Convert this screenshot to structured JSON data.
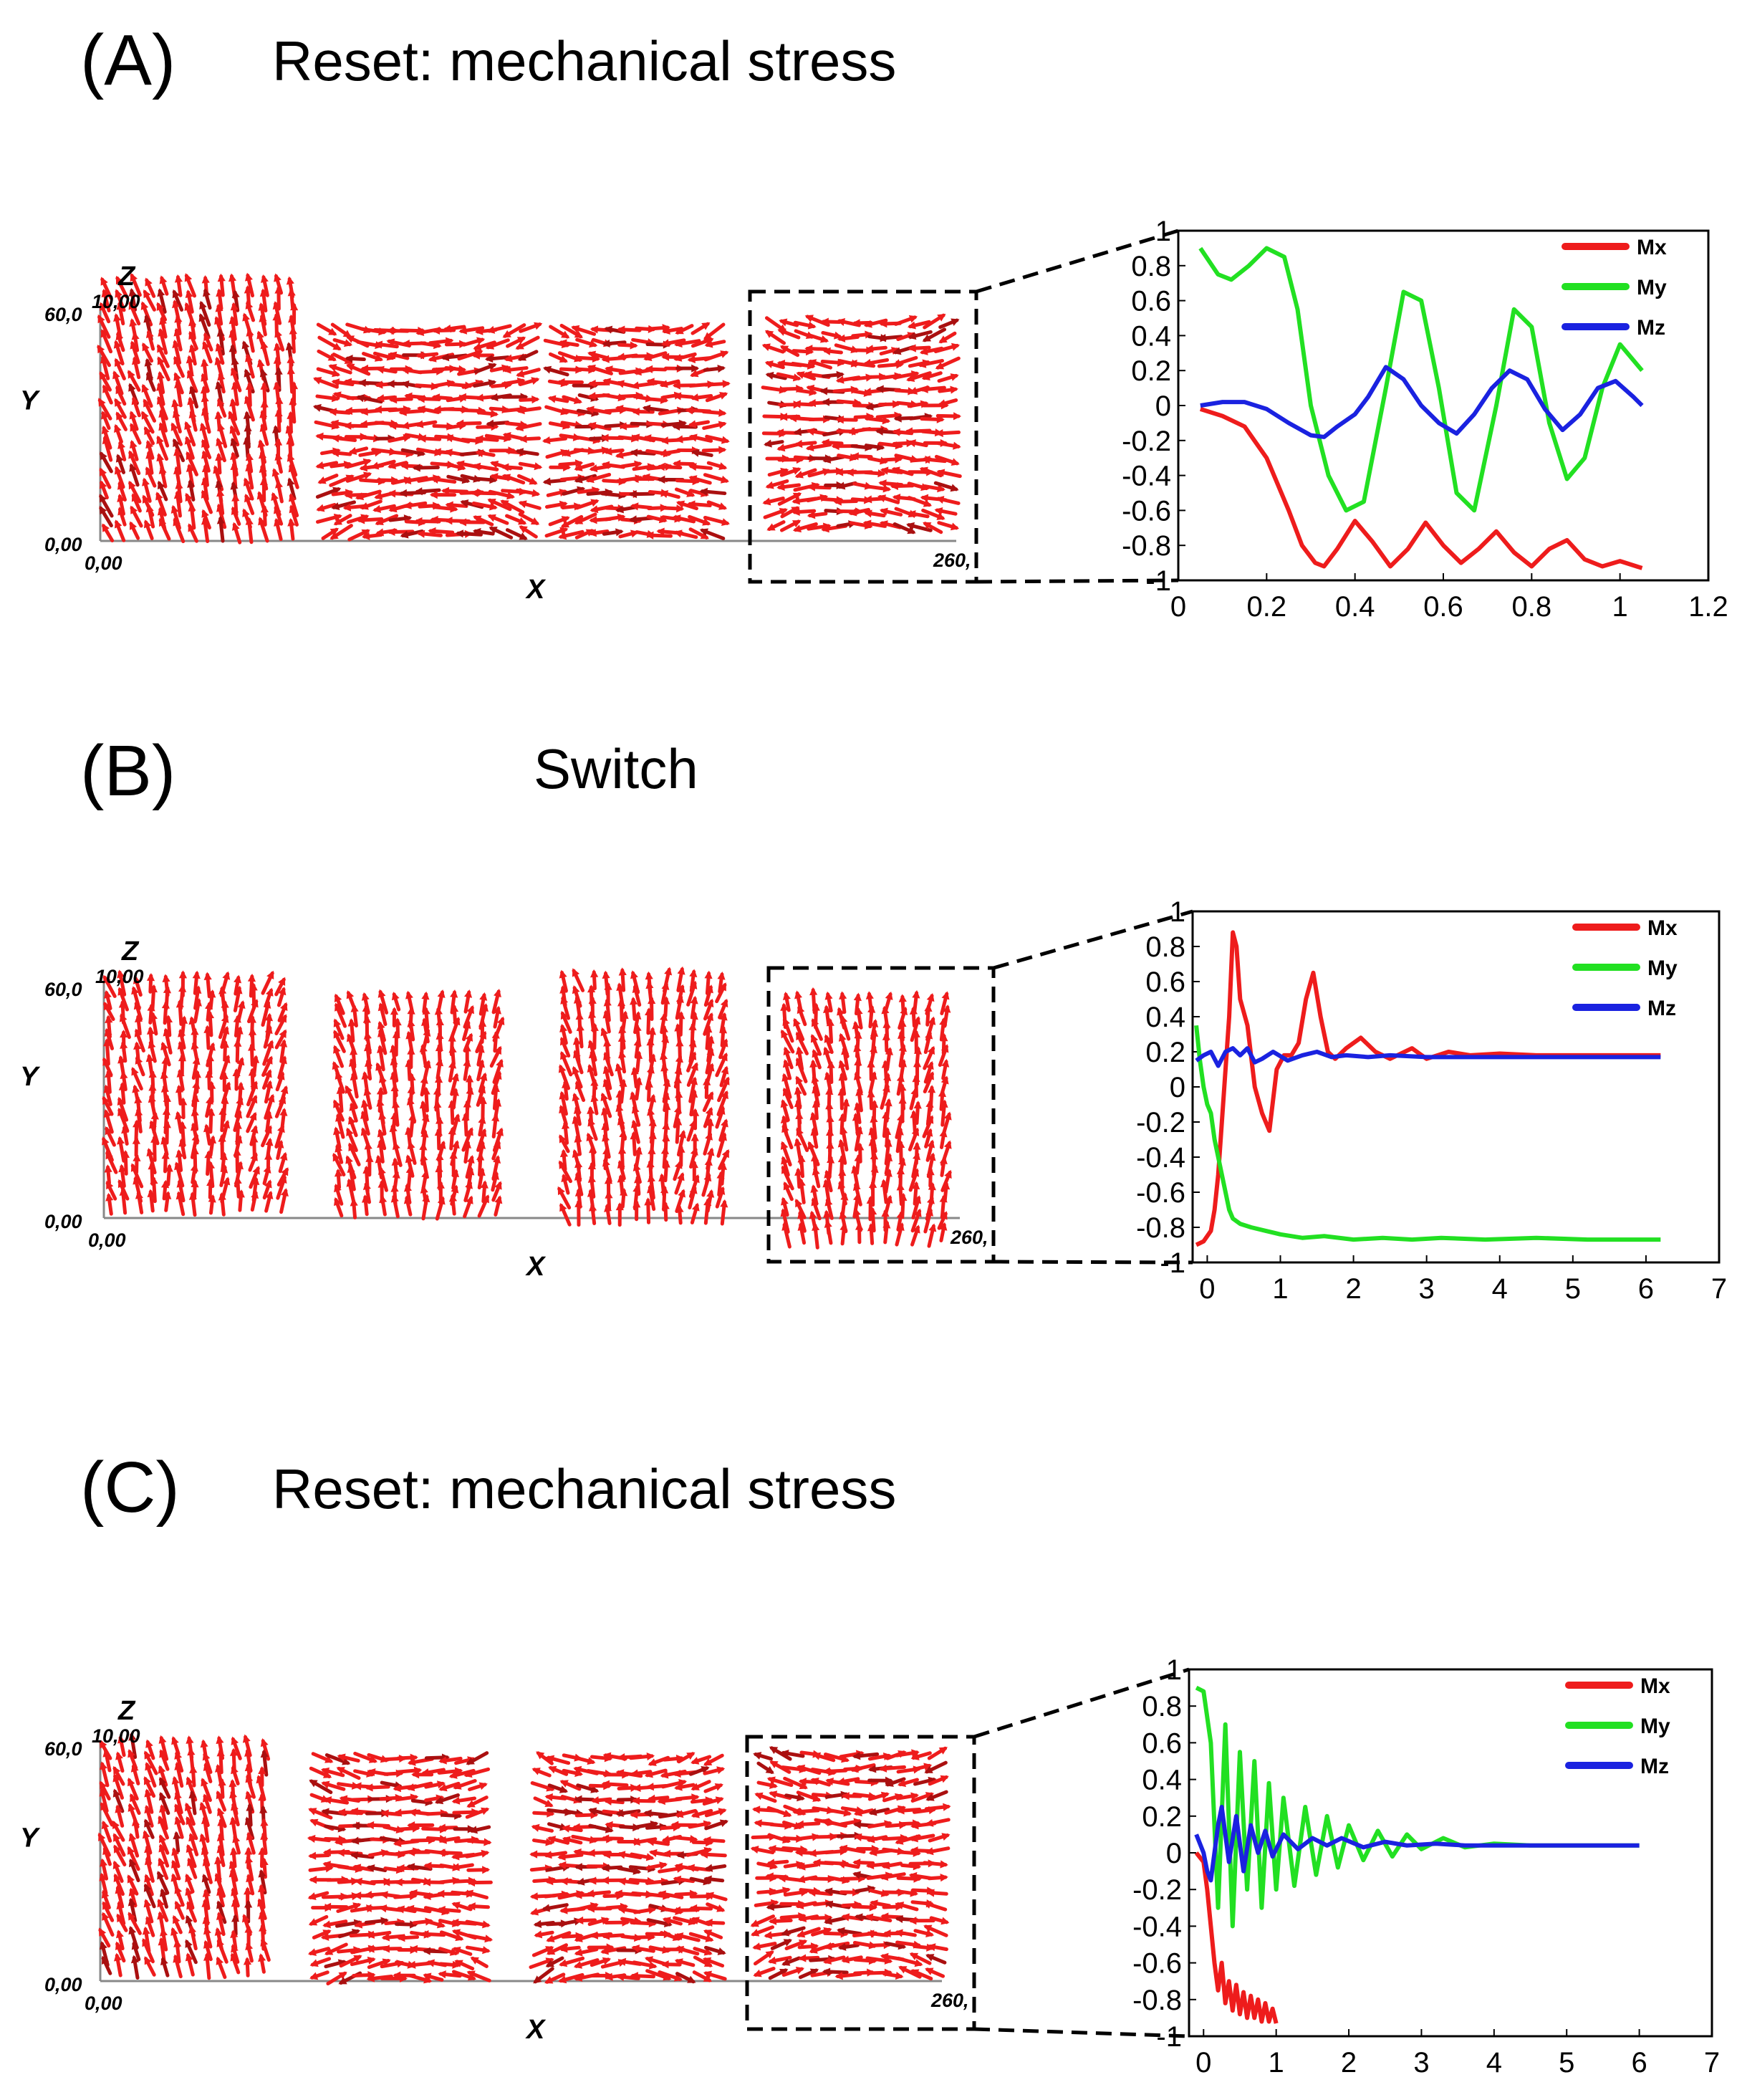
{
  "colors": {
    "Mx": "#ee1c1c",
    "My": "#22e022",
    "Mz": "#1a22e0",
    "arrows": "#ee1c1c",
    "arrows_dark": "#aa1010"
  },
  "panels": [
    {
      "label": "(A)",
      "title": "Reset: mechanical stress",
      "snapshot": {
        "z_axis": "Z",
        "y_axis": "Y",
        "x_axis": "X",
        "y_max": "60,0",
        "z_max": "10,00",
        "y_origin": "0,00",
        "x_origin": "0,00",
        "x_max": "260,",
        "tile_patterns": [
          "diagonal",
          "horizontal",
          "horizontal",
          "horizontal"
        ]
      }
    },
    {
      "label": "(B)",
      "title": "Switch",
      "snapshot": {
        "z_axis": "Z",
        "y_axis": "Y",
        "x_axis": "X",
        "y_max": "60,0",
        "z_max": "10,00",
        "y_origin": "0,00",
        "x_origin": "0,00",
        "x_max": "260,",
        "tile_patterns": [
          "vertical",
          "vertical",
          "vertical",
          "vertical"
        ]
      }
    },
    {
      "label": "(C)",
      "title": "Reset: mechanical stress",
      "snapshot": {
        "z_axis": "Z",
        "y_axis": "Y",
        "x_axis": "X",
        "y_max": "60,0",
        "z_max": "10,00",
        "y_origin": "0,00",
        "x_origin": "0,00",
        "x_max": "260,",
        "tile_patterns": [
          "diagonal",
          "horizontal",
          "horizontal",
          "horizontal"
        ]
      }
    }
  ],
  "chart_data": [
    {
      "type": "line",
      "panel": "(A)",
      "title": "",
      "xlabel": "",
      "ylabel": "",
      "xlim": [
        0,
        1.2
      ],
      "ylim": [
        -1,
        1
      ],
      "x_ticks": [
        "0",
        "0.2",
        "0.4",
        "0.6",
        "0.8",
        "1",
        "1.2"
      ],
      "y_ticks": [
        "1",
        "0.8",
        "0.6",
        "0.4",
        "0.2",
        "0",
        "-0.2",
        "-0.4",
        "-0.6",
        "-0.8",
        "-1"
      ],
      "legend": "top-right",
      "series": [
        {
          "name": "Mx",
          "x": [
            0.05,
            0.1,
            0.15,
            0.2,
            0.25,
            0.28,
            0.31,
            0.33,
            0.36,
            0.4,
            0.44,
            0.48,
            0.52,
            0.56,
            0.6,
            0.64,
            0.68,
            0.72,
            0.76,
            0.8,
            0.84,
            0.88,
            0.92,
            0.96,
            1.0,
            1.05
          ],
          "y": [
            -0.02,
            -0.06,
            -0.12,
            -0.3,
            -0.6,
            -0.8,
            -0.9,
            -0.92,
            -0.82,
            -0.66,
            -0.78,
            -0.92,
            -0.82,
            -0.67,
            -0.8,
            -0.9,
            -0.82,
            -0.72,
            -0.84,
            -0.92,
            -0.82,
            -0.77,
            -0.88,
            -0.92,
            -0.89,
            -0.93
          ]
        },
        {
          "name": "My",
          "x": [
            0.05,
            0.09,
            0.12,
            0.16,
            0.2,
            0.24,
            0.27,
            0.3,
            0.34,
            0.38,
            0.42,
            0.47,
            0.51,
            0.55,
            0.59,
            0.63,
            0.67,
            0.72,
            0.76,
            0.8,
            0.84,
            0.88,
            0.92,
            0.96,
            1.0,
            1.05
          ],
          "y": [
            0.9,
            0.75,
            0.72,
            0.8,
            0.9,
            0.85,
            0.55,
            0.0,
            -0.4,
            -0.6,
            -0.55,
            0.1,
            0.65,
            0.6,
            0.1,
            -0.5,
            -0.6,
            0.0,
            0.55,
            0.45,
            -0.1,
            -0.42,
            -0.3,
            0.1,
            0.35,
            0.2
          ]
        },
        {
          "name": "Mz",
          "x": [
            0.05,
            0.1,
            0.15,
            0.2,
            0.25,
            0.3,
            0.33,
            0.36,
            0.4,
            0.43,
            0.47,
            0.51,
            0.55,
            0.59,
            0.63,
            0.67,
            0.71,
            0.75,
            0.79,
            0.83,
            0.87,
            0.91,
            0.95,
            0.99,
            1.03,
            1.05
          ],
          "y": [
            0.0,
            0.02,
            0.02,
            -0.02,
            -0.1,
            -0.17,
            -0.18,
            -0.12,
            -0.05,
            0.05,
            0.22,
            0.15,
            0.0,
            -0.1,
            -0.16,
            -0.05,
            0.1,
            0.2,
            0.15,
            -0.02,
            -0.14,
            -0.05,
            0.1,
            0.14,
            0.05,
            0.0
          ]
        }
      ]
    },
    {
      "type": "line",
      "panel": "(B)",
      "title": "",
      "xlabel": "",
      "ylabel": "",
      "xlim": [
        -0.2,
        7
      ],
      "ylim": [
        -1,
        1
      ],
      "x_ticks": [
        "0",
        "1",
        "2",
        "3",
        "4",
        "5",
        "6",
        "7"
      ],
      "y_ticks": [
        "1",
        "0.8",
        "0.6",
        "0.4",
        "0.2",
        "0",
        "-0.2",
        "-0.4",
        "-0.6",
        "-0.8",
        "-1"
      ],
      "legend": "top-right",
      "series": [
        {
          "name": "Mx",
          "x": [
            -0.15,
            -0.05,
            0.05,
            0.1,
            0.15,
            0.2,
            0.3,
            0.35,
            0.4,
            0.45,
            0.55,
            0.65,
            0.75,
            0.85,
            0.95,
            1.05,
            1.15,
            1.25,
            1.35,
            1.45,
            1.55,
            1.65,
            1.75,
            1.9,
            2.1,
            2.3,
            2.5,
            2.8,
            3.0,
            3.3,
            3.6,
            4.0,
            4.5,
            5.0,
            5.5,
            6.2
          ],
          "y": [
            -0.9,
            -0.88,
            -0.82,
            -0.7,
            -0.5,
            -0.2,
            0.4,
            0.88,
            0.8,
            0.5,
            0.35,
            0.0,
            -0.15,
            -0.25,
            0.1,
            0.18,
            0.18,
            0.25,
            0.5,
            0.65,
            0.4,
            0.2,
            0.16,
            0.22,
            0.28,
            0.2,
            0.16,
            0.22,
            0.16,
            0.2,
            0.18,
            0.19,
            0.18,
            0.18,
            0.18,
            0.18
          ]
        },
        {
          "name": "My",
          "x": [
            -0.15,
            -0.1,
            -0.05,
            0.0,
            0.05,
            0.1,
            0.15,
            0.2,
            0.25,
            0.3,
            0.35,
            0.45,
            0.6,
            0.8,
            1.0,
            1.3,
            1.6,
            2.0,
            2.4,
            2.8,
            3.2,
            3.8,
            4.5,
            5.2,
            6.2
          ],
          "y": [
            0.35,
            0.15,
            0.0,
            -0.1,
            -0.15,
            -0.3,
            -0.4,
            -0.5,
            -0.6,
            -0.7,
            -0.75,
            -0.78,
            -0.8,
            -0.82,
            -0.84,
            -0.86,
            -0.85,
            -0.87,
            -0.86,
            -0.87,
            -0.86,
            -0.87,
            -0.86,
            -0.87,
            -0.87
          ]
        },
        {
          "name": "Mz",
          "x": [
            -0.15,
            -0.05,
            0.05,
            0.15,
            0.25,
            0.35,
            0.45,
            0.55,
            0.65,
            0.75,
            0.9,
            1.1,
            1.3,
            1.5,
            1.7,
            1.9,
            2.2,
            2.5,
            3.0,
            3.5,
            4.0,
            5.0,
            6.2
          ],
          "y": [
            0.15,
            0.18,
            0.2,
            0.12,
            0.2,
            0.22,
            0.18,
            0.22,
            0.14,
            0.16,
            0.2,
            0.15,
            0.18,
            0.2,
            0.17,
            0.18,
            0.17,
            0.18,
            0.17,
            0.17,
            0.17,
            0.17,
            0.17
          ]
        }
      ]
    },
    {
      "type": "line",
      "panel": "(C)",
      "title": "",
      "xlabel": "",
      "ylabel": "",
      "xlim": [
        -0.2,
        7
      ],
      "ylim": [
        -1,
        1
      ],
      "x_ticks": [
        "0",
        "1",
        "2",
        "3",
        "4",
        "5",
        "6",
        "7"
      ],
      "y_ticks": [
        "1",
        "0.8",
        "0.6",
        "0.4",
        "0.2",
        "0",
        "-0.2",
        "-0.4",
        "-0.6",
        "-0.8",
        "-1"
      ],
      "legend": "top-right",
      "series": [
        {
          "name": "Mx",
          "x": [
            -0.1,
            0.0,
            0.05,
            0.1,
            0.15,
            0.2,
            0.25,
            0.3,
            0.35,
            0.4,
            0.45,
            0.5,
            0.55,
            0.6,
            0.65,
            0.7,
            0.75,
            0.8,
            0.85,
            0.9,
            0.95,
            1.0
          ],
          "y": [
            0.0,
            -0.05,
            -0.2,
            -0.4,
            -0.6,
            -0.75,
            -0.6,
            -0.82,
            -0.7,
            -0.86,
            -0.72,
            -0.88,
            -0.76,
            -0.9,
            -0.78,
            -0.9,
            -0.8,
            -0.92,
            -0.82,
            -0.92,
            -0.85,
            -0.93
          ]
        },
        {
          "name": "My",
          "x": [
            -0.1,
            0.0,
            0.1,
            0.2,
            0.3,
            0.4,
            0.5,
            0.6,
            0.7,
            0.8,
            0.9,
            1.0,
            1.1,
            1.25,
            1.4,
            1.55,
            1.7,
            1.85,
            2.0,
            2.2,
            2.4,
            2.6,
            2.8,
            3.0,
            3.3,
            3.6,
            4.0,
            4.5,
            5.0,
            6.0
          ],
          "y": [
            0.9,
            0.88,
            0.6,
            -0.3,
            0.7,
            -0.4,
            0.55,
            -0.2,
            0.5,
            -0.3,
            0.38,
            -0.2,
            0.3,
            -0.18,
            0.25,
            -0.12,
            0.2,
            -0.08,
            0.15,
            -0.04,
            0.12,
            -0.02,
            0.1,
            0.02,
            0.08,
            0.03,
            0.05,
            0.04,
            0.04,
            0.04
          ]
        },
        {
          "name": "Mz",
          "x": [
            -0.1,
            0.0,
            0.05,
            0.1,
            0.15,
            0.2,
            0.25,
            0.3,
            0.35,
            0.45,
            0.55,
            0.65,
            0.75,
            0.85,
            0.95,
            1.1,
            1.3,
            1.5,
            1.7,
            1.9,
            2.2,
            2.5,
            2.8,
            3.2,
            3.6,
            4.2,
            5.0,
            6.0
          ],
          "y": [
            0.1,
            0.0,
            -0.1,
            -0.15,
            0.0,
            0.15,
            0.25,
            0.1,
            -0.05,
            0.2,
            -0.1,
            0.15,
            0.0,
            0.12,
            -0.02,
            0.1,
            0.02,
            0.08,
            0.04,
            0.08,
            0.03,
            0.06,
            0.04,
            0.05,
            0.04,
            0.04,
            0.04,
            0.04
          ]
        }
      ]
    }
  ]
}
